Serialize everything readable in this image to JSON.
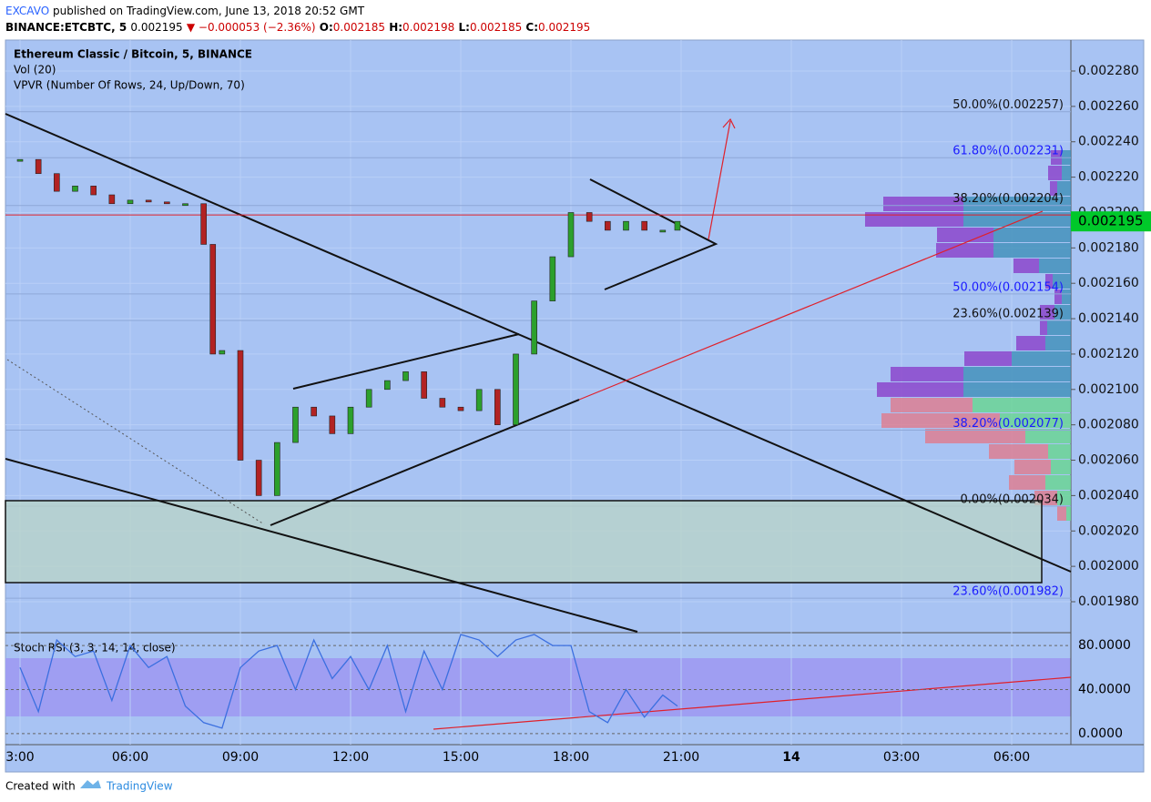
{
  "header": {
    "author": "EXCAVO",
    "published": "published on TradingView.com, June 13, 2018 20:52 GMT",
    "symbol": "BINANCE:ETCBTC, 5",
    "last": "0.002195",
    "change": "▼ −0.000053 (−2.36%)",
    "o_label": "O:",
    "o": "0.002185",
    "h_label": "H:",
    "h": "0.002198",
    "l_label": "L:",
    "l": "0.002185",
    "c_label": "C:",
    "c": "0.002195"
  },
  "legend": {
    "main": "Ethereum Classic / Bitcoin, 5, BINANCE",
    "vol": "Vol (20)",
    "vpvr": "VPVR (Number Of Rows, 24, Up/Down, 70)",
    "stoch": "Stoch RSI (3, 3, 14, 14, close)"
  },
  "chart_data": {
    "type": "candlestick",
    "ylim": [
      0.0019625,
      0.0022975
    ],
    "yticks": [
      {
        "value": 0.00228,
        "label": "0.002280"
      },
      {
        "value": 0.00226,
        "label": "0.002260"
      },
      {
        "value": 0.00224,
        "label": "0.002240"
      },
      {
        "value": 0.00222,
        "label": "0.002220"
      },
      {
        "value": 0.0022,
        "label": "0.002200"
      },
      {
        "value": 0.00218,
        "label": "0.002180"
      },
      {
        "value": 0.00216,
        "label": "0.002160"
      },
      {
        "value": 0.00214,
        "label": "0.002140"
      },
      {
        "value": 0.00212,
        "label": "0.002120"
      },
      {
        "value": 0.0021,
        "label": "0.002100"
      },
      {
        "value": 0.00208,
        "label": "0.002080"
      },
      {
        "value": 0.00206,
        "label": "0.002060"
      },
      {
        "value": 0.00204,
        "label": "0.002040"
      },
      {
        "value": 0.00202,
        "label": "0.002020"
      },
      {
        "value": 0.002,
        "label": "0.002000"
      },
      {
        "value": 0.00198,
        "label": "0.001980"
      }
    ],
    "xlim": [
      2.6,
      30.6
    ],
    "xticks": [
      {
        "value": 3,
        "label": "3:00"
      },
      {
        "value": 6,
        "label": "06:00"
      },
      {
        "value": 9,
        "label": "09:00"
      },
      {
        "value": 12,
        "label": "12:00"
      },
      {
        "value": 15,
        "label": "15:00"
      },
      {
        "value": 18,
        "label": "18:00"
      },
      {
        "value": 21,
        "label": "21:00"
      },
      {
        "value": 24,
        "label": "14"
      },
      {
        "value": 27,
        "label": "03:00"
      },
      {
        "value": 30,
        "label": "06:00"
      }
    ],
    "x": [
      3,
      3.5,
      4,
      4.5,
      5,
      5.5,
      6,
      6.5,
      7,
      7.5,
      8,
      8.25,
      8.5,
      9,
      9.5,
      10,
      10.5,
      11,
      11.5,
      12,
      12.5,
      13,
      13.5,
      14,
      14.5,
      15,
      15.5,
      16,
      16.5,
      17,
      17.5,
      18,
      18.5,
      19,
      19.5,
      20,
      20.5,
      20.9
    ],
    "close": [
      0.00223,
      0.002222,
      0.002212,
      0.002215,
      0.00221,
      0.002205,
      0.002207,
      0.002206,
      0.002205,
      0.002205,
      0.002182,
      0.00212,
      0.002122,
      0.00206,
      0.00204,
      0.00207,
      0.00209,
      0.002085,
      0.002075,
      0.00209,
      0.0021,
      0.002105,
      0.00211,
      0.002095,
      0.00209,
      0.002088,
      0.0021,
      0.00208,
      0.00212,
      0.00215,
      0.002175,
      0.0022,
      0.002195,
      0.00219,
      0.002195,
      0.00219,
      0.00219,
      0.002195
    ],
    "up_color": "#2ca02c",
    "down_color": "#b22222",
    "last_price": {
      "value": 0.002195,
      "label": "0.002195"
    },
    "fib_levels": [
      {
        "label": "50.00%(0.002257)",
        "price": 0.002257,
        "color": "#111111"
      },
      {
        "label": "61.80%(0.002231)",
        "price": 0.002231,
        "color": "#1a1aff"
      },
      {
        "label": "38.20%(0.002204)",
        "price": 0.002204,
        "color": "#111111"
      },
      {
        "label": "50.00%(0.002154)",
        "price": 0.002154,
        "color": "#1a1aff"
      },
      {
        "label": "23.60%(0.002139)",
        "price": 0.002139,
        "color": "#111111"
      },
      {
        "label": "38.20%(0.002077)",
        "price": 0.002077,
        "color": "#1a1aff"
      },
      {
        "label": "0.00%(0.002034)",
        "price": 0.002034,
        "color": "#111111"
      },
      {
        "label": "23.60%(0.001982)",
        "price": 0.001982,
        "color": "#1a1aff"
      }
    ],
    "volume_profile": {
      "up": [
        10,
        10,
        15,
        118,
        118,
        85,
        85,
        35,
        20,
        10,
        18,
        26,
        28,
        65,
        118,
        118,
        108,
        78,
        50,
        25,
        22,
        28,
        15,
        5
      ],
      "down": [
        12,
        15,
        8,
        88,
        108,
        62,
        63,
        28,
        8,
        8,
        16,
        8,
        32,
        52,
        80,
        95,
        90,
        130,
        110,
        65,
        40,
        40,
        25,
        10
      ]
    },
    "stoch": {
      "ylim": [
        -10,
        90
      ],
      "yticks": [
        {
          "value": 80,
          "label": "80.0000"
        },
        {
          "value": 40,
          "label": "40.0000"
        },
        {
          "value": 0,
          "label": "0.0000"
        }
      ],
      "x": [
        3,
        3.5,
        4,
        4.5,
        5,
        5.5,
        6,
        6.5,
        7,
        7.5,
        8,
        8.5,
        9,
        9.5,
        10,
        10.5,
        11,
        11.5,
        12,
        12.5,
        13,
        13.5,
        14,
        14.5,
        15,
        15.5,
        16,
        16.5,
        17,
        17.5,
        18,
        18.5,
        19,
        19.5,
        20,
        20.5,
        20.9
      ],
      "k": [
        60,
        20,
        85,
        70,
        75,
        30,
        80,
        60,
        70,
        25,
        10,
        5,
        60,
        75,
        80,
        40,
        85,
        50,
        70,
        40,
        80,
        20,
        75,
        40,
        90,
        85,
        70,
        85,
        90,
        80,
        80,
        20,
        10,
        40,
        15,
        35,
        25
      ],
      "color": "#3b6fe0"
    }
  },
  "footer": {
    "created": "Created with",
    "brand": "TradingView"
  }
}
